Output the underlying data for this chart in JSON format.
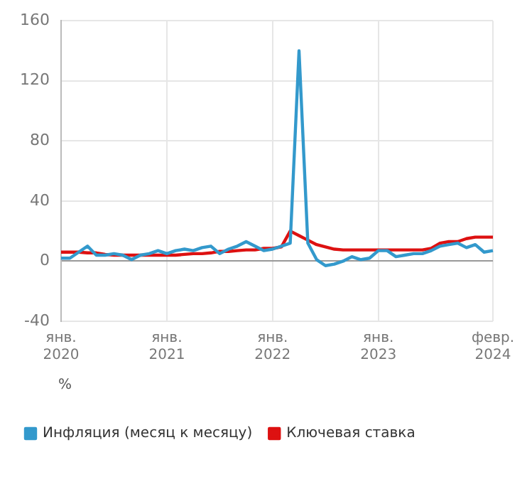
{
  "chart_data": {
    "type": "line",
    "annotations": [
      "%"
    ],
    "categories": [
      "янв. 2020",
      null,
      null,
      null,
      null,
      null,
      null,
      null,
      null,
      null,
      null,
      null,
      "янв. 2021",
      null,
      null,
      null,
      null,
      null,
      null,
      null,
      null,
      null,
      null,
      null,
      "янв. 2022",
      null,
      null,
      null,
      null,
      null,
      null,
      null,
      null,
      null,
      null,
      null,
      "янв. 2023",
      null,
      null,
      null,
      null,
      null,
      null,
      null,
      null,
      null,
      null,
      null,
      null,
      "февр. 2024"
    ],
    "series": [
      {
        "name": "Инфляция (месяц к месяцу)",
        "color": "#3399cc",
        "values": [
          2,
          2,
          6,
          10,
          4,
          4,
          5,
          4,
          1,
          4,
          5,
          7,
          5,
          7,
          8,
          7,
          9,
          10,
          5,
          8,
          10,
          13,
          10,
          7,
          8,
          10,
          12,
          140,
          12,
          1,
          -3,
          -2,
          0,
          3,
          1,
          2,
          7,
          7,
          3,
          4,
          5,
          5,
          7,
          10,
          11,
          12,
          9,
          11,
          6,
          7
        ]
      },
      {
        "name": "Ключевая ставка",
        "color": "#dd1111",
        "values": [
          6,
          6,
          6,
          5.5,
          5.5,
          4.5,
          4,
          4,
          4,
          4,
          4,
          4,
          4,
          4,
          4.5,
          5,
          5,
          5.5,
          6.5,
          6.5,
          7,
          7.5,
          7.5,
          8.5,
          8.5,
          9.5,
          20,
          17,
          14,
          11,
          9.5,
          8,
          7.5,
          7.5,
          7.5,
          7.5,
          7.5,
          7.5,
          7.5,
          7.5,
          7.5,
          7.5,
          8.5,
          12,
          13,
          13,
          15,
          16,
          16,
          16
        ]
      }
    ],
    "ylim": [
      -40,
      160
    ],
    "yticks": [
      -40,
      0,
      40,
      80,
      120,
      160
    ],
    "grid": true,
    "legend": "bottom left",
    "marker": "none",
    "line_style": "solid"
  }
}
